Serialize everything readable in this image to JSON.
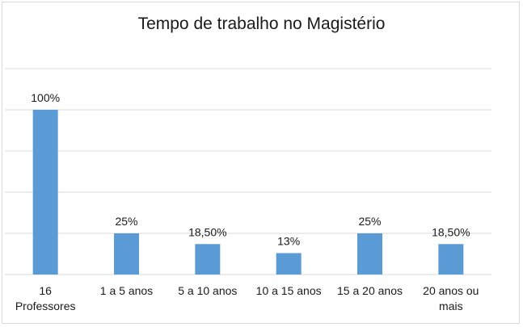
{
  "chart_data": {
    "type": "bar",
    "title": "Tempo de trabalho no Magistério",
    "categories": [
      [
        "16",
        "Professores"
      ],
      [
        "1 a 5 anos"
      ],
      [
        "5 a 10 anos"
      ],
      [
        "10 a 15 anos"
      ],
      [
        "15 a 20 anos"
      ],
      [
        "20 anos ou",
        "mais"
      ]
    ],
    "values": [
      100,
      25,
      18.5,
      13,
      25,
      18.5
    ],
    "data_labels": [
      "100%",
      "25%",
      "18,50%",
      "13%",
      "25%",
      "18,50%"
    ],
    "ylim": [
      0,
      125
    ],
    "grid": true,
    "legend": "none",
    "bar_color": "#5b9bd5",
    "gridline_color": "#d9d9d9"
  }
}
